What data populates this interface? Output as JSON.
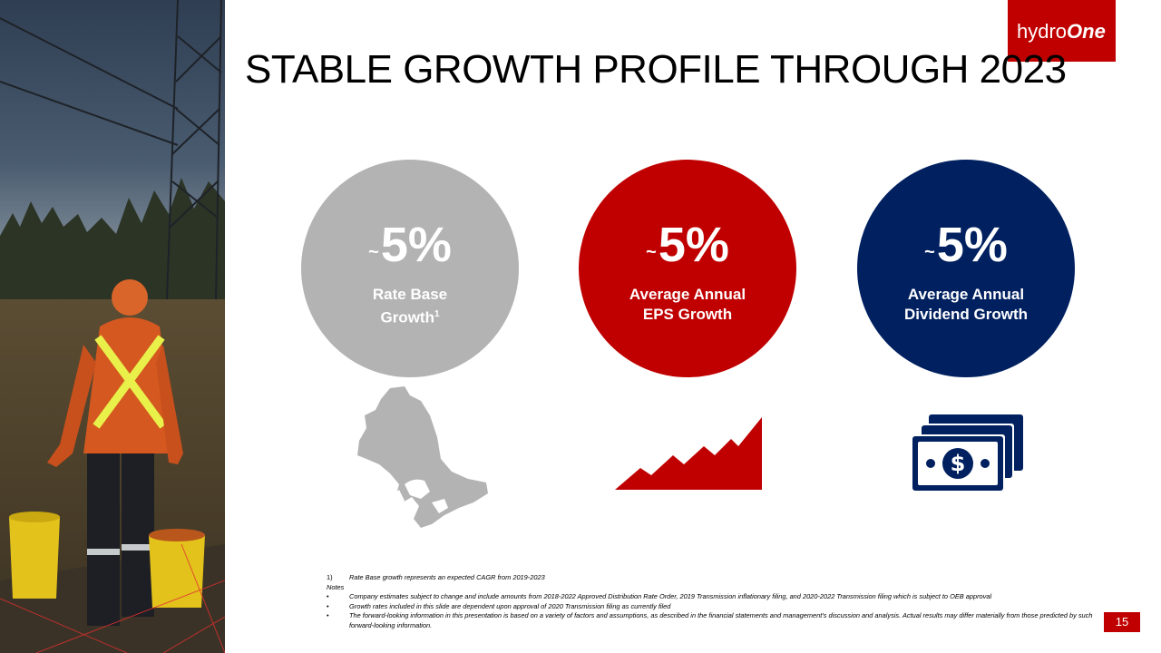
{
  "brand": {
    "logo_text_plain": "hydro",
    "logo_text_bold": "One",
    "accent_color": "#c00000",
    "navy_color": "#002060",
    "gray_color": "#b3b3b3"
  },
  "slide": {
    "title": "STABLE GROWTH PROFILE THROUGH 2023",
    "page_number": "15"
  },
  "metrics": [
    {
      "tilde": "~",
      "value": "5%",
      "label_line1": "Rate Base",
      "label_line2": "Growth",
      "superscript": "1",
      "icon": "ontario-map-icon"
    },
    {
      "tilde": "~",
      "value": "5%",
      "label_line1": "Average Annual",
      "label_line2": "EPS Growth",
      "superscript": "",
      "icon": "growth-chart-icon"
    },
    {
      "tilde": "~",
      "value": "5%",
      "label_line1": "Average Annual",
      "label_line2": "Dividend Growth",
      "superscript": "",
      "icon": "money-stack-icon"
    }
  ],
  "footnotes": {
    "footnote_1_marker": "1)",
    "footnote_1": "Rate Base growth represents an expected CAGR from 2019-2023",
    "notes_heading": "Notes",
    "bullets": [
      "Company estimates subject to change and include amounts from 2018-2022 Approved Distribution Rate Order, 2019 Transmission inflationary filing, and 2020-2022 Transmission filing which is subject to OEB approval",
      "Growth rates included in this slide are dependent upon approval of 2020 Transmission filing as currently filed",
      "The forward-looking information in this presentation is based on a variety of factors and assumptions, as described in the financial statements and management's discussion and analysis. Actual results may differ materially from those predicted by such forward-looking information."
    ]
  }
}
